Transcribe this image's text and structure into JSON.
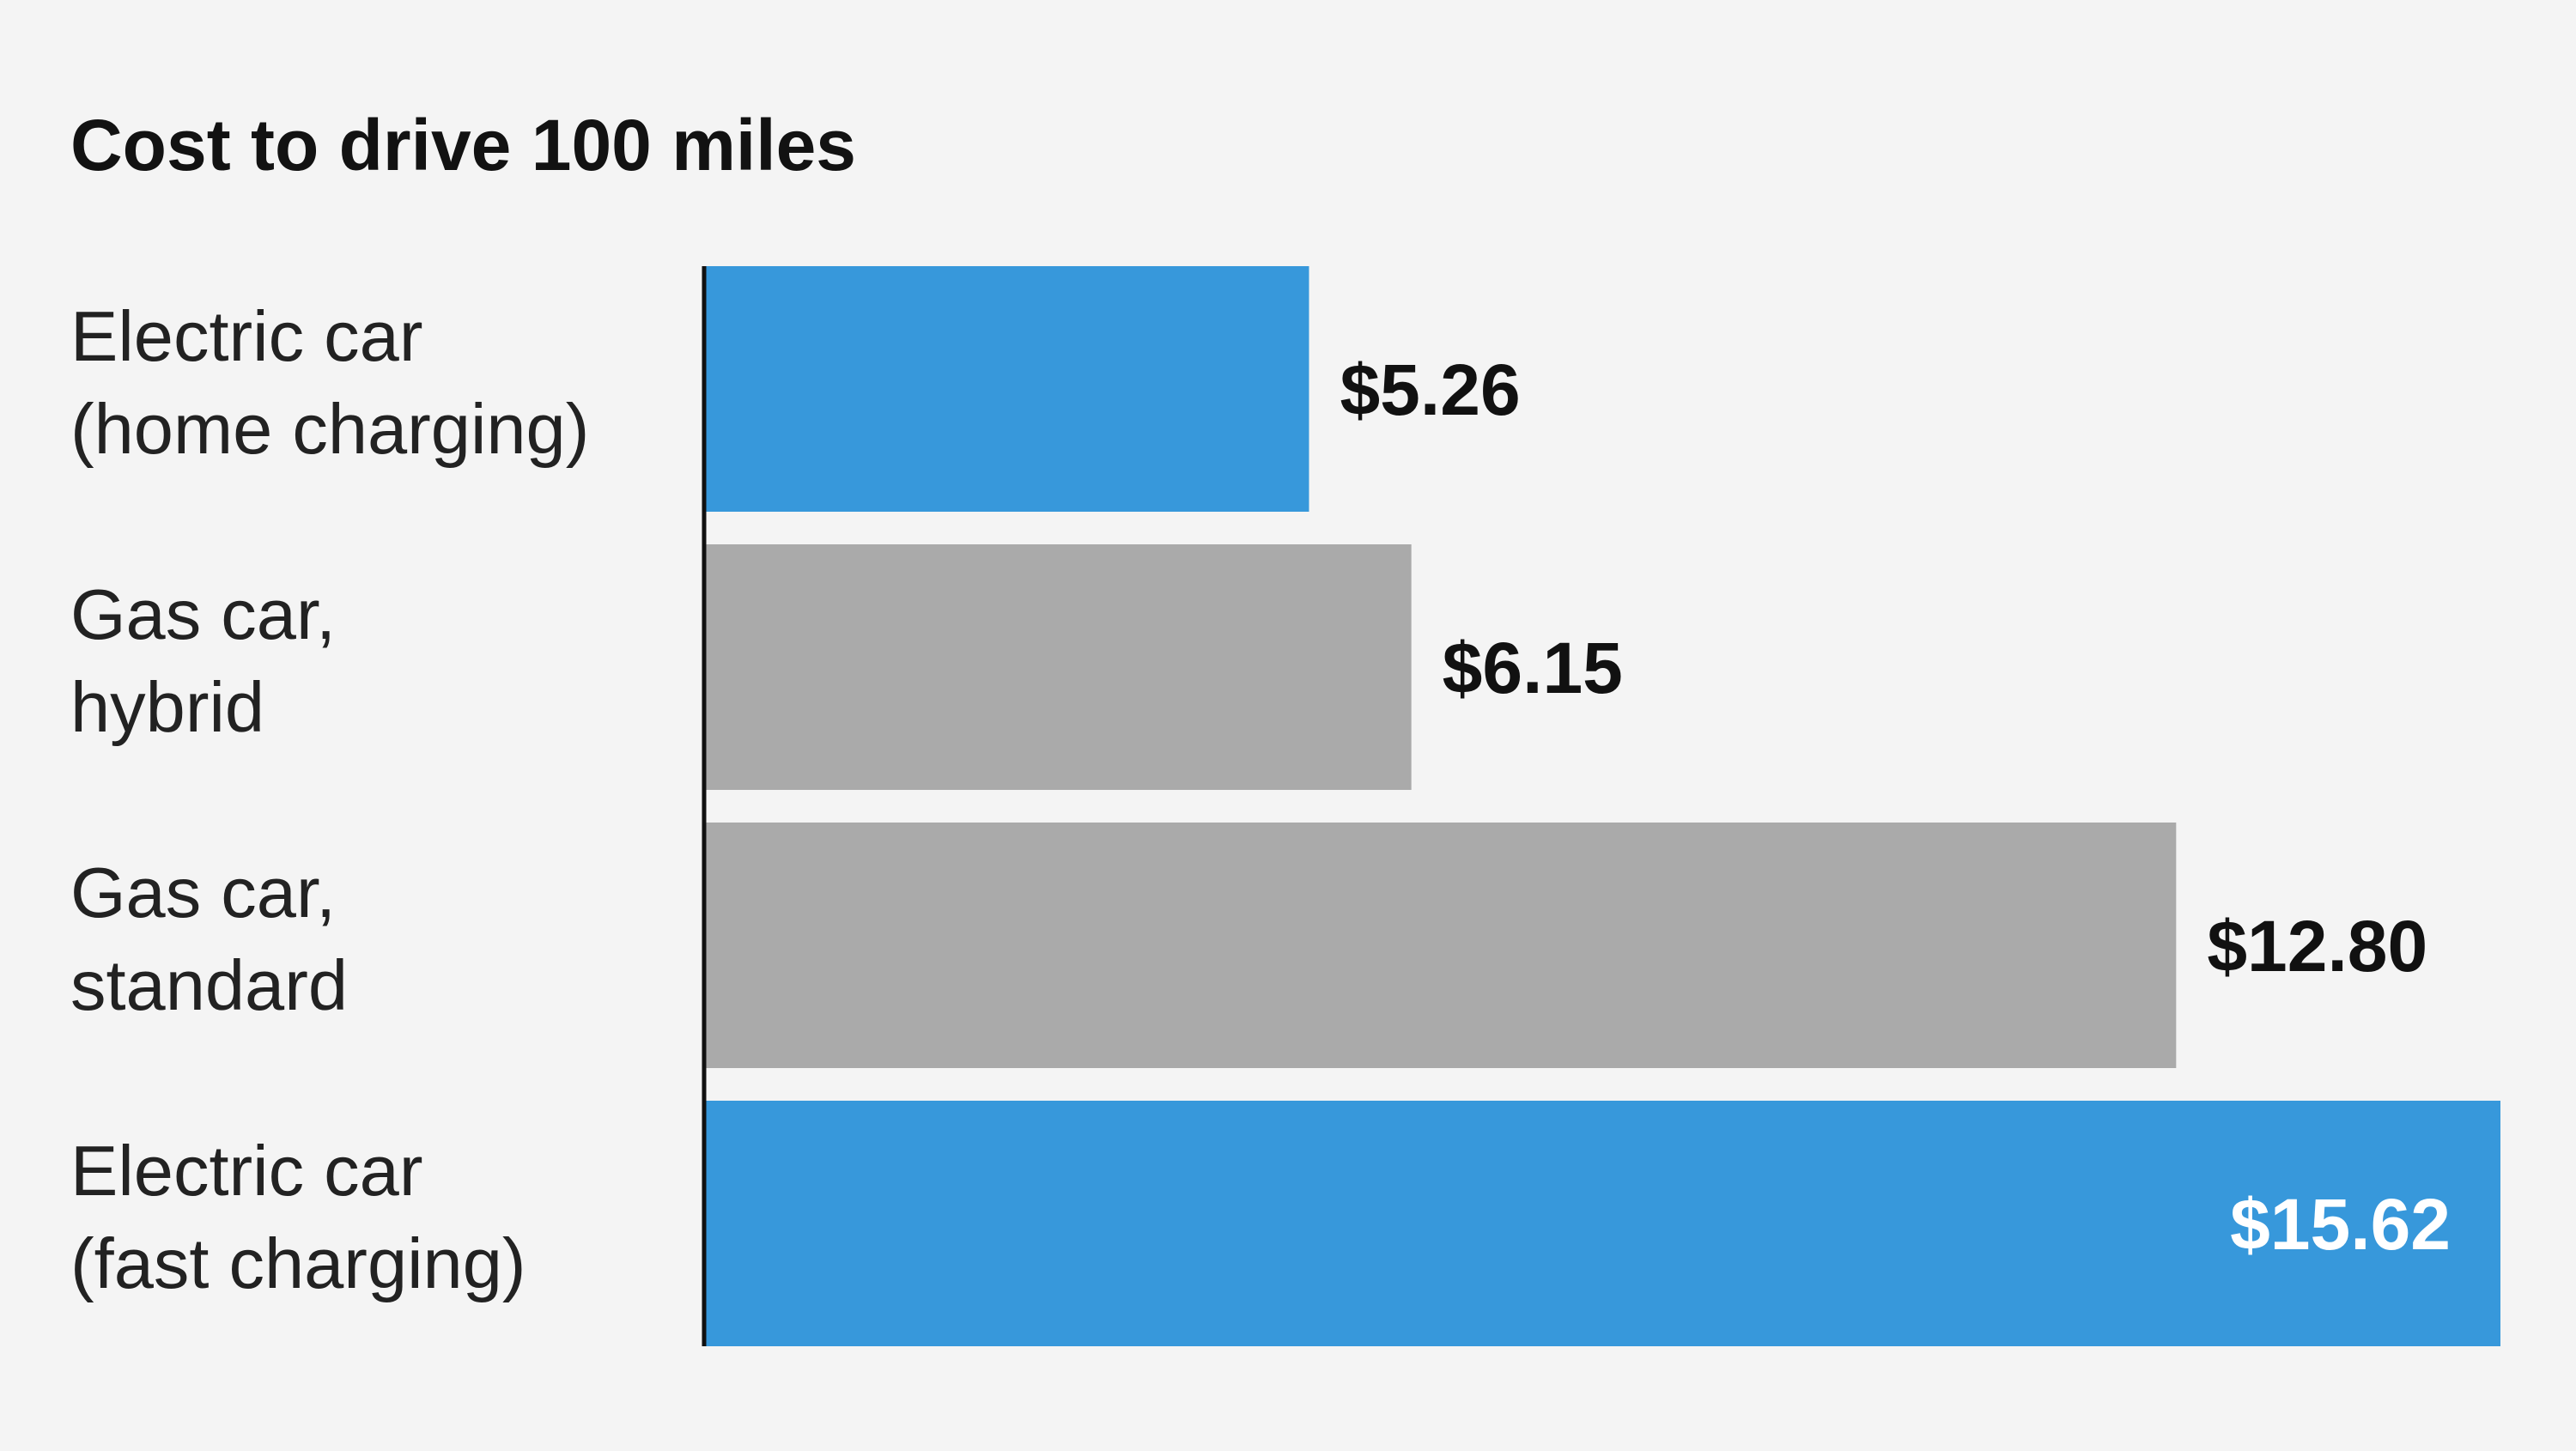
{
  "chart_data": {
    "type": "bar",
    "orientation": "horizontal",
    "title": "Cost to drive 100 miles",
    "xlabel": "",
    "ylabel": "",
    "xlim": [
      0,
      15.62
    ],
    "grid": false,
    "legend": "none",
    "categories": [
      [
        "Electric car",
        "(home charging)"
      ],
      [
        "Gas car,",
        "hybrid"
      ],
      [
        "Gas car,",
        "standard"
      ],
      [
        "Electric car",
        "(fast charging)"
      ]
    ],
    "values": [
      5.26,
      6.15,
      12.8,
      15.62
    ],
    "value_labels": [
      "$5.26",
      "$6.15",
      "$12.80",
      "$15.62"
    ],
    "bar_colors": [
      "#3798db",
      "#aaaaaa",
      "#aaaaaa",
      "#3798db"
    ],
    "label_colors": [
      "#111111",
      "#111111",
      "#111111",
      "#ffffff"
    ],
    "label_placement": [
      "outside",
      "outside",
      "outside",
      "inside"
    ],
    "axis_color": "#111111",
    "background": "#f4f4f4"
  }
}
